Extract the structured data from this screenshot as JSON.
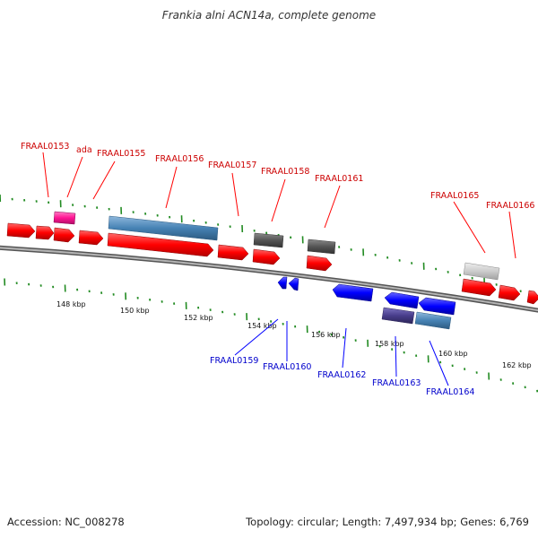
{
  "title": "Frankia alni ACN14a, complete genome",
  "footer": {
    "accession": "Accession: NC_008278",
    "stats": "Topology: circular; Length: 7,497,934 bp; Genes: 6,769"
  },
  "colors": {
    "forward_gene": "#ff0000",
    "reverse_gene": "#0000ff",
    "rna": "#ff1493",
    "feature_blue": "#4682b4",
    "feature_dark": "#555555",
    "feature_light": "#cccccc",
    "feature_purple": "#483d8b",
    "tick": "#228b22",
    "backbone": "#8c8c8c"
  },
  "scale_labels": [
    "148 kbp",
    "150 kbp",
    "152 kbp",
    "154 kbp",
    "156 kbp",
    "158 kbp",
    "160 kbp",
    "162 kbp"
  ],
  "forward_labels": [
    "FRAAL0153",
    "ada",
    "FRAAL0155",
    "FRAAL0156",
    "FRAAL0157",
    "FRAAL0158",
    "FRAAL0161",
    "FRAAL0165",
    "FRAAL0166"
  ],
  "reverse_labels": [
    "FRAAL0159",
    "FRAAL0160",
    "FRAAL0162",
    "FRAAL0163",
    "FRAAL0164"
  ]
}
